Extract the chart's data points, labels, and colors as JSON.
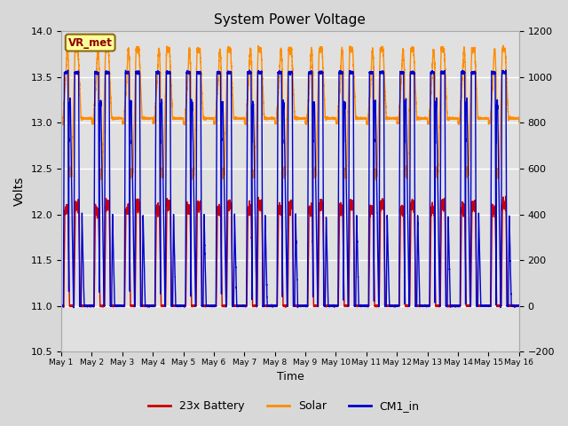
{
  "title": "System Power Voltage",
  "xlabel": "Time",
  "ylabel": "Volts",
  "xlim": [
    0,
    15
  ],
  "ylim_left": [
    10.5,
    14.0
  ],
  "ylim_right": [
    -200,
    1200
  ],
  "yticks_left": [
    10.5,
    11.0,
    11.5,
    12.0,
    12.5,
    13.0,
    13.5,
    14.0
  ],
  "yticks_right": [
    -200,
    0,
    200,
    400,
    600,
    800,
    1000,
    1200
  ],
  "xtick_labels": [
    "May 1",
    "May 2",
    "May 3",
    "May 4",
    "May 5",
    "May 6",
    "May 7",
    "May 8",
    "May 9",
    "May 10",
    "May 11",
    "May 12",
    "May 13",
    "May 14",
    "May 15",
    "May 16"
  ],
  "xtick_positions": [
    0,
    1,
    2,
    3,
    4,
    5,
    6,
    7,
    8,
    9,
    10,
    11,
    12,
    13,
    14,
    15
  ],
  "bg_color": "#d8d8d8",
  "plot_bg_color": "#e0e0e0",
  "grid_color": "#ffffff",
  "legend_items": [
    "23x Battery",
    "Solar",
    "CM1_in"
  ],
  "legend_colors": [
    "#cc0000",
    "#ff8c00",
    "#0000cc"
  ],
  "vr_met_label": "VR_met",
  "vr_met_text_color": "#8b0000",
  "vr_met_box_color": "#ffff99",
  "battery_color": "#cc0000",
  "solar_color": "#ff8c00",
  "cm1_color": "#0000cc"
}
